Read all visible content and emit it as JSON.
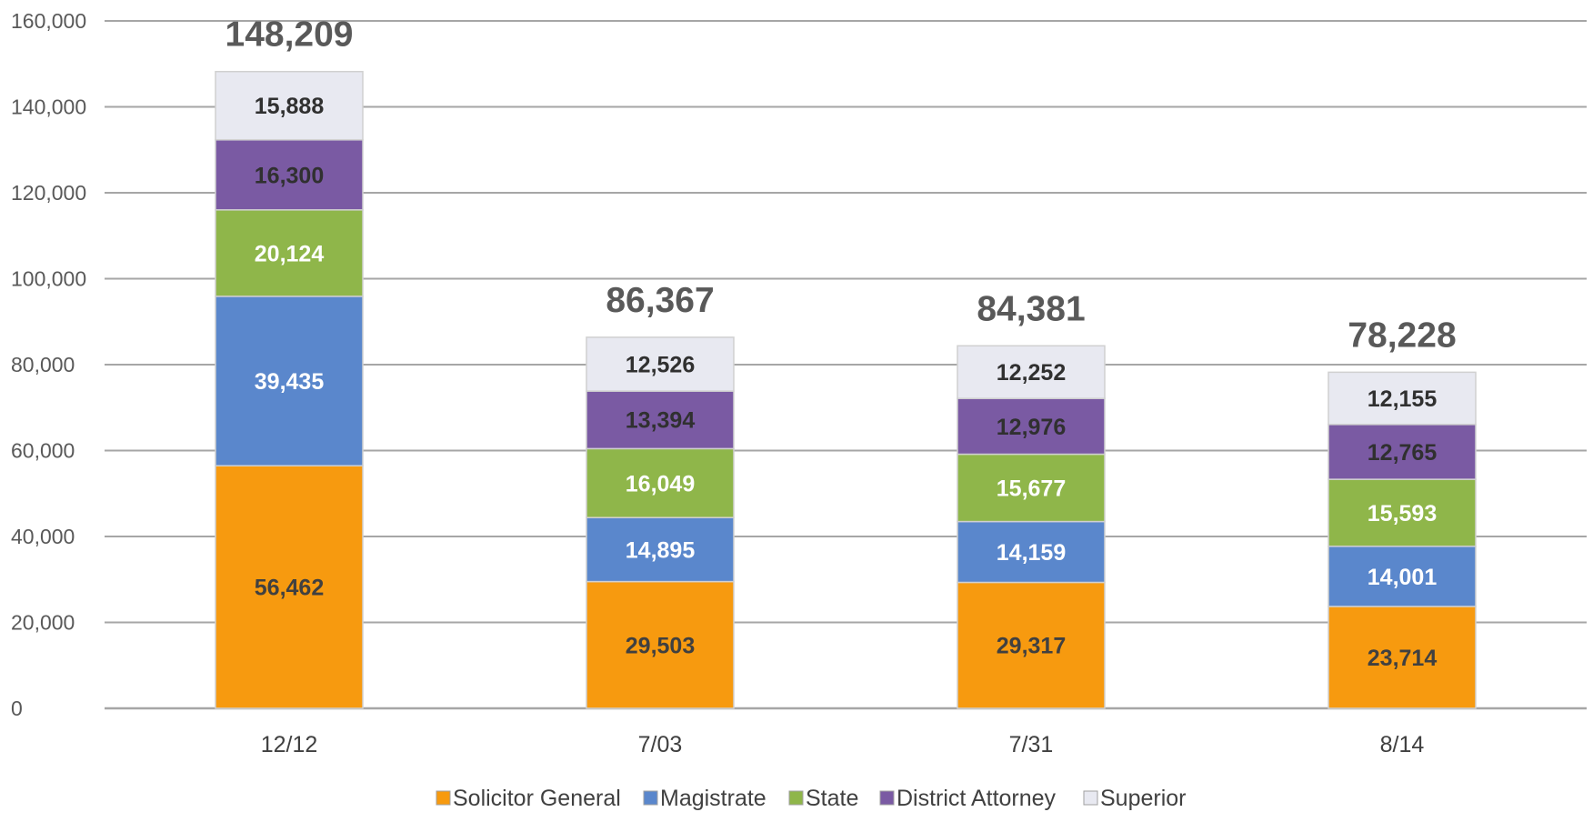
{
  "chart_data": {
    "type": "bar",
    "stacked": true,
    "categories": [
      "12/12",
      "7/03",
      "7/31",
      "8/14"
    ],
    "series": [
      {
        "name": "Solicitor General",
        "values": [
          56462,
          29503,
          29317,
          23714
        ],
        "color": "#f79a0f",
        "label_color": "#404040"
      },
      {
        "name": "Magistrate",
        "values": [
          39435,
          14895,
          14159,
          14001
        ],
        "color": "#5a87cc",
        "label_color": "#ffffff"
      },
      {
        "name": "State",
        "values": [
          20124,
          16049,
          15677,
          15593
        ],
        "color": "#8fb64a",
        "label_color": "#ffffff"
      },
      {
        "name": "District Attorney",
        "values": [
          16300,
          13394,
          12976,
          12765
        ],
        "color": "#7a5aa3",
        "label_color": "#303030"
      },
      {
        "name": "Superior",
        "values": [
          15888,
          12526,
          12252,
          12155
        ],
        "color": "#e8e9f1",
        "label_color": "#303030"
      }
    ],
    "segment_labels": [
      [
        "56,462",
        "29,503",
        "29,317",
        "23,714"
      ],
      [
        "39,435",
        "14,895",
        "14,159",
        "14,001"
      ],
      [
        "20,124",
        "16,049",
        "15,677",
        "15,593"
      ],
      [
        "16,300",
        "13,394",
        "12,976",
        "12,765"
      ],
      [
        "15,888",
        "12,526",
        "12,252",
        "12,155"
      ]
    ],
    "totals": [
      148209,
      86367,
      84381,
      78228
    ],
    "total_labels": [
      "148,209",
      "86,367",
      "84,381",
      "78,228"
    ],
    "y_ticks": [
      0,
      20000,
      40000,
      60000,
      80000,
      100000,
      120000,
      140000,
      160000
    ],
    "y_tick_labels": [
      "0",
      "20,000",
      "40,000",
      "60,000",
      "80,000",
      "100,000",
      "120,000",
      "140,000",
      "160,000"
    ],
    "ylim": [
      0,
      160000
    ],
    "grid": true,
    "legend_position": "bottom",
    "title": "",
    "xlabel": "",
    "ylabel": "",
    "colors": {
      "grid": "#a6a6a6",
      "bar_border": "#d0d0d0"
    }
  }
}
